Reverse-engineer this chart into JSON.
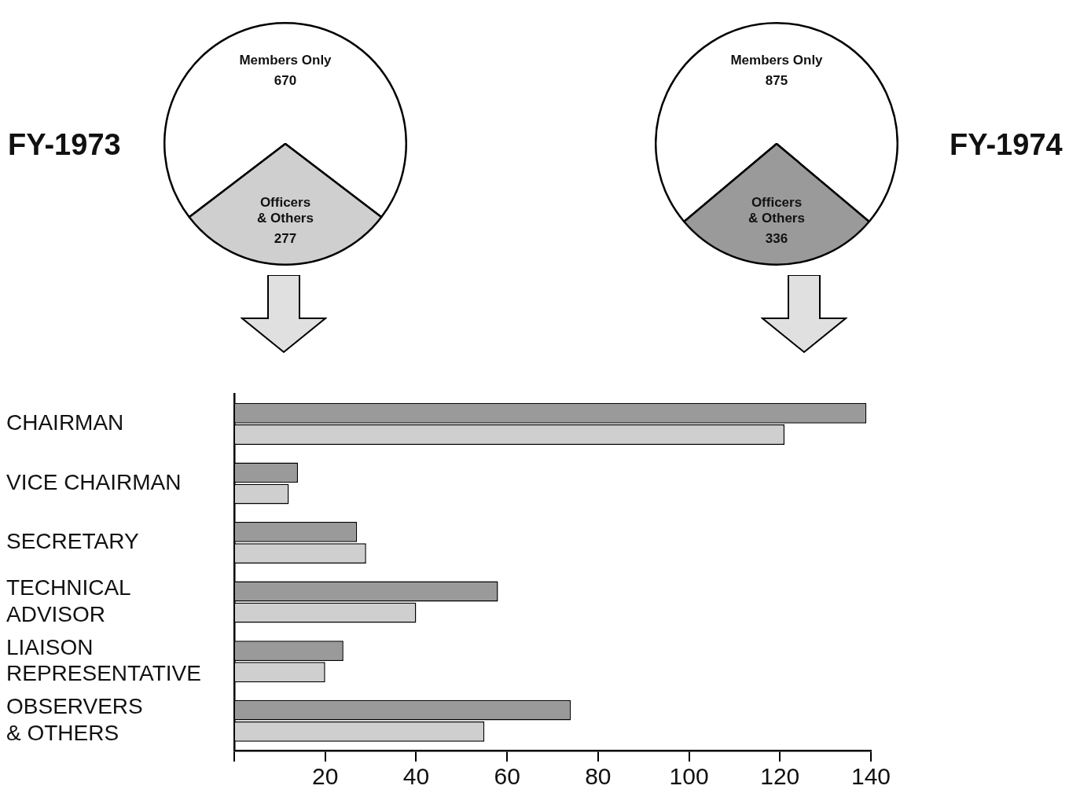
{
  "chart_data": [
    {
      "type": "pie",
      "title": "FY-1973",
      "categories": [
        "Members Only",
        "Officers & Others"
      ],
      "values": [
        670,
        277
      ],
      "colors": [
        "#ffffff",
        "#cfcfcf"
      ],
      "data_labels": true
    },
    {
      "type": "pie",
      "title": "FY-1974",
      "categories": [
        "Members Only",
        "Officers & Others"
      ],
      "values": [
        875,
        336
      ],
      "colors": [
        "#ffffff",
        "#9a9a9a"
      ],
      "data_labels": true
    },
    {
      "type": "bar",
      "orientation": "horizontal",
      "categories": [
        "CHAIRMAN",
        "VICE CHAIRMAN",
        "SECRETARY",
        "TECHNICAL ADVISOR",
        "LIAISON REPRESENTATIVE",
        "OBSERVERS & OTHERS"
      ],
      "series": [
        {
          "color": "#9a9a9a",
          "values": [
            139,
            14,
            27,
            58,
            24,
            74
          ]
        },
        {
          "color": "#cfcfcf",
          "values": [
            121,
            12,
            29,
            40,
            20,
            55
          ]
        }
      ],
      "xlim": [
        0,
        140
      ],
      "xticks": [
        {
          "value": 0,
          "label": null
        },
        20,
        40,
        60,
        80,
        100,
        120,
        140
      ],
      "grid": false,
      "legend": false
    }
  ]
}
